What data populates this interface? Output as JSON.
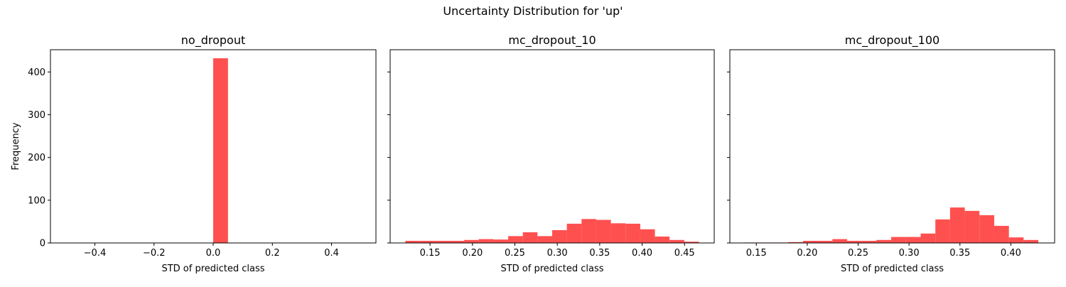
{
  "figure": {
    "suptitle": "Uncertainty Distribution for 'up'"
  },
  "chart_data": [
    {
      "type": "bar",
      "title": "no_dropout",
      "xlabel": "STD of predicted class",
      "ylabel": "Frequency",
      "xlim": [
        -0.55,
        0.55
      ],
      "ylim": [
        0,
        452
      ],
      "xticks": [
        -0.4,
        -0.2,
        0.0,
        0.2,
        0.4
      ],
      "xtick_labels": [
        "−0.4",
        "−0.2",
        "0.0",
        "0.2",
        "0.4"
      ],
      "yticks": [
        0,
        100,
        200,
        300,
        400
      ],
      "ytick_labels": [
        "0",
        "100",
        "200",
        "300",
        "400"
      ],
      "color": "#ff5050",
      "bin_edges": [
        0.0,
        0.05
      ],
      "values": [
        432
      ]
    },
    {
      "type": "bar",
      "title": "mc_dropout_10",
      "xlabel": "STD of predicted class",
      "ylabel": "",
      "xlim": [
        0.103,
        0.485
      ],
      "ylim": [
        0,
        452
      ],
      "xticks": [
        0.15,
        0.2,
        0.25,
        0.3,
        0.35,
        0.4,
        0.45
      ],
      "xtick_labels": [
        "0.15",
        "0.20",
        "0.25",
        "0.30",
        "0.35",
        "0.40",
        "0.45"
      ],
      "yticks": [
        0,
        100,
        200,
        300,
        400
      ],
      "ytick_labels": [
        "",
        "",
        "",
        "",
        ""
      ],
      "color": "#ff5050",
      "bin_edges": [
        0.121,
        0.1383,
        0.1556,
        0.1729,
        0.1902,
        0.2075,
        0.2248,
        0.2421,
        0.2594,
        0.2767,
        0.294,
        0.3113,
        0.3286,
        0.3459,
        0.3632,
        0.3805,
        0.3978,
        0.4151,
        0.4324,
        0.4497,
        0.467
      ],
      "values": [
        5,
        5,
        5,
        5,
        7,
        9,
        8,
        16,
        25,
        16,
        30,
        45,
        56,
        54,
        46,
        45,
        32,
        15,
        7,
        3
      ]
    },
    {
      "type": "bar",
      "title": "mc_dropout_100",
      "xlabel": "STD of predicted class",
      "ylabel": "",
      "xlim": [
        0.124,
        0.443
      ],
      "ylim": [
        0,
        452
      ],
      "xticks": [
        0.15,
        0.2,
        0.25,
        0.3,
        0.35,
        0.4
      ],
      "xtick_labels": [
        "0.15",
        "0.20",
        "0.25",
        "0.30",
        "0.35",
        "0.40"
      ],
      "yticks": [
        0,
        100,
        200,
        300,
        400
      ],
      "ytick_labels": [
        "",
        "",
        "",
        "",
        ""
      ],
      "color": "#ff5050",
      "bin_edges": [
        0.138,
        0.15245,
        0.1669,
        0.18135,
        0.1958,
        0.21025,
        0.2247,
        0.23915,
        0.2536,
        0.26805,
        0.2825,
        0.29695,
        0.3114,
        0.32585,
        0.3403,
        0.35475,
        0.3692,
        0.38365,
        0.3981,
        0.41255,
        0.427
      ],
      "values": [
        1,
        1,
        1,
        2,
        5,
        5,
        9,
        5,
        5,
        7,
        14,
        14,
        22,
        55,
        83,
        75,
        65,
        40,
        13,
        7
      ]
    }
  ]
}
